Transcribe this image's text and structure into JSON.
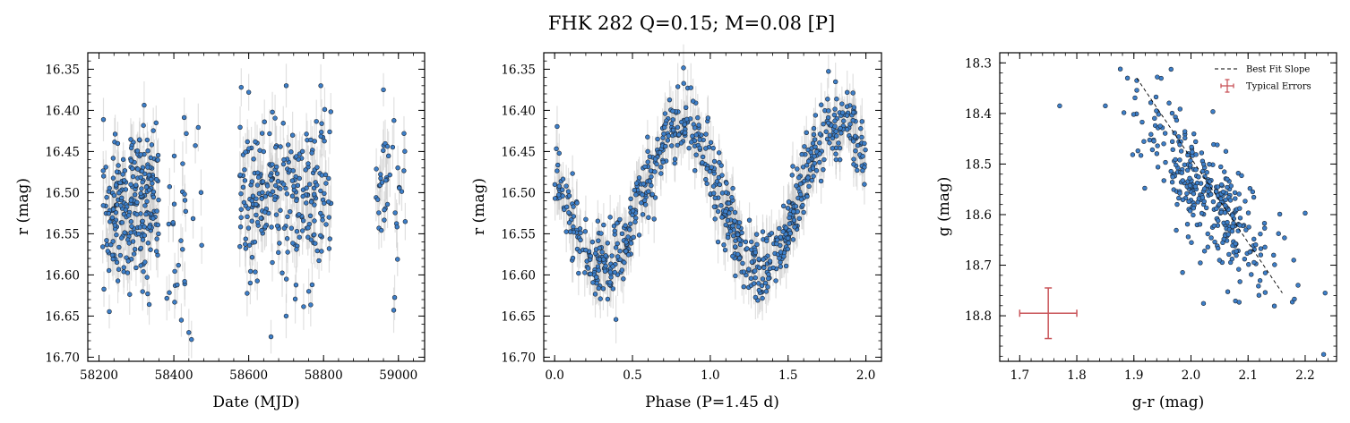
{
  "figure": {
    "title": "FHK 282  Q=0.15; M=0.08 [P]"
  },
  "colors": {
    "points": "#3d7fc9",
    "point_edge": "#1e2733",
    "errorbars": "#c8c8c8",
    "typical_error": "#c9555a",
    "fit_line": "#000000"
  },
  "chart_data": [
    {
      "type": "scatter",
      "xlabel": "Date (MJD)",
      "ylabel": "r (mag)",
      "xlim": [
        58170,
        59070
      ],
      "ylim": [
        16.705,
        16.33
      ],
      "y_inverted": true,
      "xticks": [
        58200,
        58400,
        58600,
        58800,
        59000
      ],
      "xtick_labels": [
        "58200",
        "58400",
        "58600",
        "58800",
        "59000"
      ],
      "yticks": [
        16.35,
        16.4,
        16.45,
        16.5,
        16.55,
        16.6,
        16.65,
        16.7
      ],
      "ytick_labels": [
        "16.35",
        "16.40",
        "16.45",
        "16.50",
        "16.55",
        "16.60",
        "16.65",
        "16.70"
      ],
      "errorbars": true,
      "clusters": [
        {
          "x": [
            58210,
            58300
          ],
          "y_mean": 16.525,
          "y_spread": 0.055,
          "n": 140
        },
        {
          "x": [
            58300,
            58360
          ],
          "y_mean": 16.51,
          "y_spread": 0.06,
          "n": 110
        },
        {
          "x": [
            58380,
            58480
          ],
          "y_mean": 16.55,
          "y_spread": 0.07,
          "n": 30
        },
        {
          "x": [
            58575,
            58820
          ],
          "y_mean": 16.505,
          "y_spread": 0.065,
          "n": 260
        },
        {
          "x": [
            58940,
            59020
          ],
          "y_mean": 16.5,
          "y_spread": 0.06,
          "n": 40
        }
      ],
      "notable_points": [
        {
          "x": 58580,
          "y": 16.372
        },
        {
          "x": 58600,
          "y": 16.378
        },
        {
          "x": 58960,
          "y": 16.375
        },
        {
          "x": 58440,
          "y": 16.67
        },
        {
          "x": 58420,
          "y": 16.655
        },
        {
          "x": 58700,
          "y": 16.65
        },
        {
          "x": 58330,
          "y": 16.623
        }
      ]
    },
    {
      "type": "scatter",
      "xlabel": "Phase (P=1.45 d)",
      "ylabel": "r (mag)",
      "xlim": [
        -0.07,
        2.1
      ],
      "ylim": [
        16.705,
        16.33
      ],
      "y_inverted": true,
      "xticks": [
        0.0,
        0.5,
        1.0,
        1.5,
        2.0
      ],
      "xtick_labels": [
        "0.0",
        "0.5",
        "1.0",
        "1.5",
        "2.0"
      ],
      "yticks": [
        16.35,
        16.4,
        16.45,
        16.5,
        16.55,
        16.6,
        16.65,
        16.7
      ],
      "ytick_labels": [
        "16.35",
        "16.40",
        "16.45",
        "16.50",
        "16.55",
        "16.60",
        "16.65",
        "16.70"
      ],
      "errorbars": true,
      "period_d": 1.45,
      "model": {
        "mean": 16.505,
        "amplitude": 0.088,
        "brightest_phase": 0.82,
        "spread": 0.022
      },
      "n_points": 750
    },
    {
      "type": "scatter",
      "xlabel": "g-r (mag)",
      "ylabel": "g (mag)",
      "xlim": [
        1.665,
        2.255
      ],
      "ylim": [
        18.89,
        18.28
      ],
      "y_inverted": true,
      "xticks": [
        1.7,
        1.8,
        1.9,
        2.0,
        2.1,
        2.2
      ],
      "xtick_labels": [
        "1.7",
        "1.8",
        "1.9",
        "2.0",
        "2.1",
        "2.2"
      ],
      "yticks": [
        18.3,
        18.4,
        18.5,
        18.6,
        18.7,
        18.8
      ],
      "ytick_labels": [
        "18.3",
        "18.4",
        "18.5",
        "18.6",
        "18.7",
        "18.8"
      ],
      "cloud": {
        "x_center": 2.03,
        "y_center": 18.56,
        "sx": 0.055,
        "sy_perp": 0.045,
        "slope": 1.5,
        "n": 330
      },
      "notable_points": [
        {
          "x": 1.77,
          "y": 18.385
        },
        {
          "x": 1.85,
          "y": 18.385
        },
        {
          "x": 1.905,
          "y": 18.335
        },
        {
          "x": 2.235,
          "y": 18.755
        },
        {
          "x": 2.2,
          "y": 18.597
        },
        {
          "x": 2.18,
          "y": 18.69
        }
      ],
      "best_fit_line": {
        "x": [
          1.905,
          2.16
        ],
        "y": [
          18.33,
          18.755
        ]
      },
      "typical_error": {
        "x": 1.75,
        "y": 18.795,
        "xerr": 0.05,
        "yerr": 0.05
      },
      "legend": {
        "placement": "top-right",
        "entries": [
          "Best Fit Slope",
          "Typical Errors"
        ]
      }
    }
  ]
}
